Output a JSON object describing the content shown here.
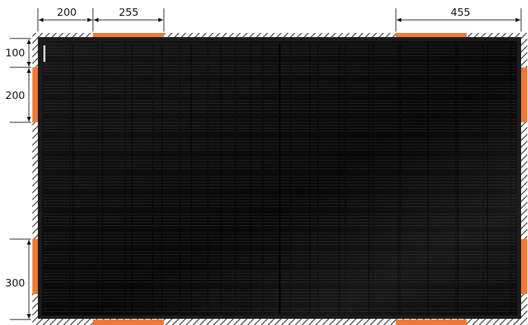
{
  "dimensions": {
    "top": [
      {
        "id": "top-200",
        "label": "200"
      },
      {
        "id": "top-255",
        "label": "255"
      },
      {
        "id": "top-455",
        "label": "455"
      }
    ],
    "left": [
      {
        "id": "left-100",
        "label": "100"
      },
      {
        "id": "left-200",
        "label": "200"
      },
      {
        "id": "left-300",
        "label": "300"
      }
    ]
  },
  "colors": {
    "panel": "#0b0b0b",
    "panel_frame": "#1c1c1c",
    "clamp_zone": "#f07a36",
    "hatch": "#4a4a4a",
    "cell_line": "#5a5a5a",
    "dimension_line": "#111111"
  }
}
